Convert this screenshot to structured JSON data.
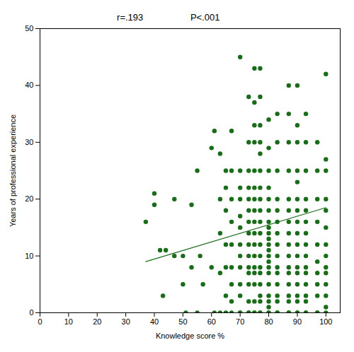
{
  "chart_data": {
    "type": "scatter",
    "annotations": [
      "r=.193",
      "P<.001"
    ],
    "xlabel": "Knowledge score %",
    "ylabel": "Years of professional experience",
    "xlim": [
      0,
      105
    ],
    "ylim": [
      0,
      50
    ],
    "xticks": [
      0,
      10,
      20,
      30,
      40,
      50,
      60,
      70,
      80,
      90,
      100
    ],
    "yticks": [
      0,
      10,
      20,
      30,
      40,
      50
    ],
    "grid": false,
    "color": "#1a6b1a",
    "x": [
      37,
      40,
      40,
      42,
      43,
      44,
      47,
      47,
      50,
      50,
      51,
      53,
      53,
      55,
      55,
      56,
      57,
      60,
      60,
      61,
      61,
      63,
      63,
      63,
      63,
      63,
      65,
      65,
      65,
      65,
      65,
      65,
      65,
      67,
      67,
      67,
      67,
      67,
      67,
      67,
      67,
      67,
      70,
      70,
      70,
      70,
      70,
      70,
      70,
      70,
      70,
      70,
      70,
      70,
      70,
      73,
      73,
      73,
      73,
      73,
      73,
      73,
      73,
      73,
      73,
      73,
      73,
      73,
      73,
      73,
      73,
      75,
      75,
      75,
      75,
      75,
      75,
      75,
      75,
      75,
      75,
      75,
      75,
      75,
      75,
      75,
      75,
      75,
      75,
      77,
      77,
      77,
      77,
      77,
      77,
      77,
      77,
      77,
      77,
      77,
      77,
      77,
      77,
      77,
      77,
      77,
      77,
      77,
      77,
      80,
      80,
      80,
      80,
      80,
      80,
      80,
      80,
      80,
      80,
      80,
      80,
      80,
      80,
      80,
      80,
      80,
      80,
      80,
      80,
      80,
      80,
      83,
      83,
      83,
      83,
      83,
      83,
      83,
      83,
      83,
      83,
      83,
      83,
      83,
      83,
      83,
      83,
      87,
      87,
      87,
      87,
      87,
      87,
      87,
      87,
      87,
      87,
      87,
      87,
      87,
      87,
      87,
      87,
      87,
      90,
      90,
      90,
      90,
      90,
      90,
      90,
      90,
      90,
      90,
      90,
      90,
      90,
      90,
      90,
      90,
      90,
      90,
      93,
      93,
      93,
      93,
      93,
      93,
      93,
      93,
      93,
      93,
      93,
      93,
      93,
      93,
      93,
      93,
      97,
      97,
      97,
      97,
      97,
      97,
      97,
      97,
      97,
      97,
      97,
      100,
      100,
      100,
      100,
      100,
      100,
      100,
      100,
      100,
      100,
      100,
      100,
      100,
      100
    ],
    "values": [
      16,
      21,
      19,
      11,
      3,
      11,
      20,
      10,
      5,
      10,
      0,
      8,
      19,
      0,
      25,
      10,
      5,
      29,
      8,
      0,
      32,
      0,
      7,
      14,
      20,
      28,
      0,
      3,
      8,
      12,
      18,
      22,
      25,
      0,
      2,
      5,
      8,
      12,
      16,
      20,
      25,
      32,
      0,
      0,
      3,
      5,
      8,
      10,
      12,
      15,
      17,
      20,
      22,
      25,
      45,
      0,
      0,
      2,
      5,
      7,
      8,
      10,
      12,
      14,
      16,
      18,
      20,
      22,
      25,
      30,
      38,
      0,
      0,
      2,
      5,
      7,
      8,
      10,
      12,
      14,
      16,
      18,
      20,
      22,
      25,
      30,
      33,
      37,
      43,
      0,
      0,
      2,
      3,
      5,
      7,
      8,
      10,
      12,
      14,
      16,
      18,
      20,
      22,
      25,
      28,
      30,
      33,
      38,
      43,
      0,
      0,
      1,
      2,
      3,
      5,
      7,
      8,
      9,
      10,
      11,
      12,
      13,
      14,
      15,
      16,
      18,
      20,
      22,
      25,
      29,
      34,
      0,
      0,
      2,
      3,
      5,
      7,
      8,
      10,
      12,
      14,
      16,
      18,
      20,
      25,
      30,
      35,
      0,
      0,
      2,
      3,
      5,
      7,
      8,
      10,
      12,
      14,
      16,
      18,
      20,
      25,
      30,
      35,
      40,
      0,
      0,
      2,
      3,
      5,
      7,
      8,
      10,
      12,
      14,
      16,
      18,
      20,
      23,
      25,
      30,
      33,
      40,
      0,
      0,
      2,
      3,
      5,
      7,
      8,
      10,
      12,
      14,
      16,
      18,
      20,
      25,
      30,
      35,
      0,
      0,
      3,
      5,
      7,
      9,
      12,
      16,
      20,
      25,
      30,
      0,
      1,
      3,
      5,
      7,
      8,
      10,
      12,
      15,
      18,
      20,
      25,
      27,
      42
    ],
    "regression": {
      "x": [
        37,
        100
      ],
      "values": [
        9.0,
        18.5
      ],
      "color": "#1a6b1a"
    }
  }
}
